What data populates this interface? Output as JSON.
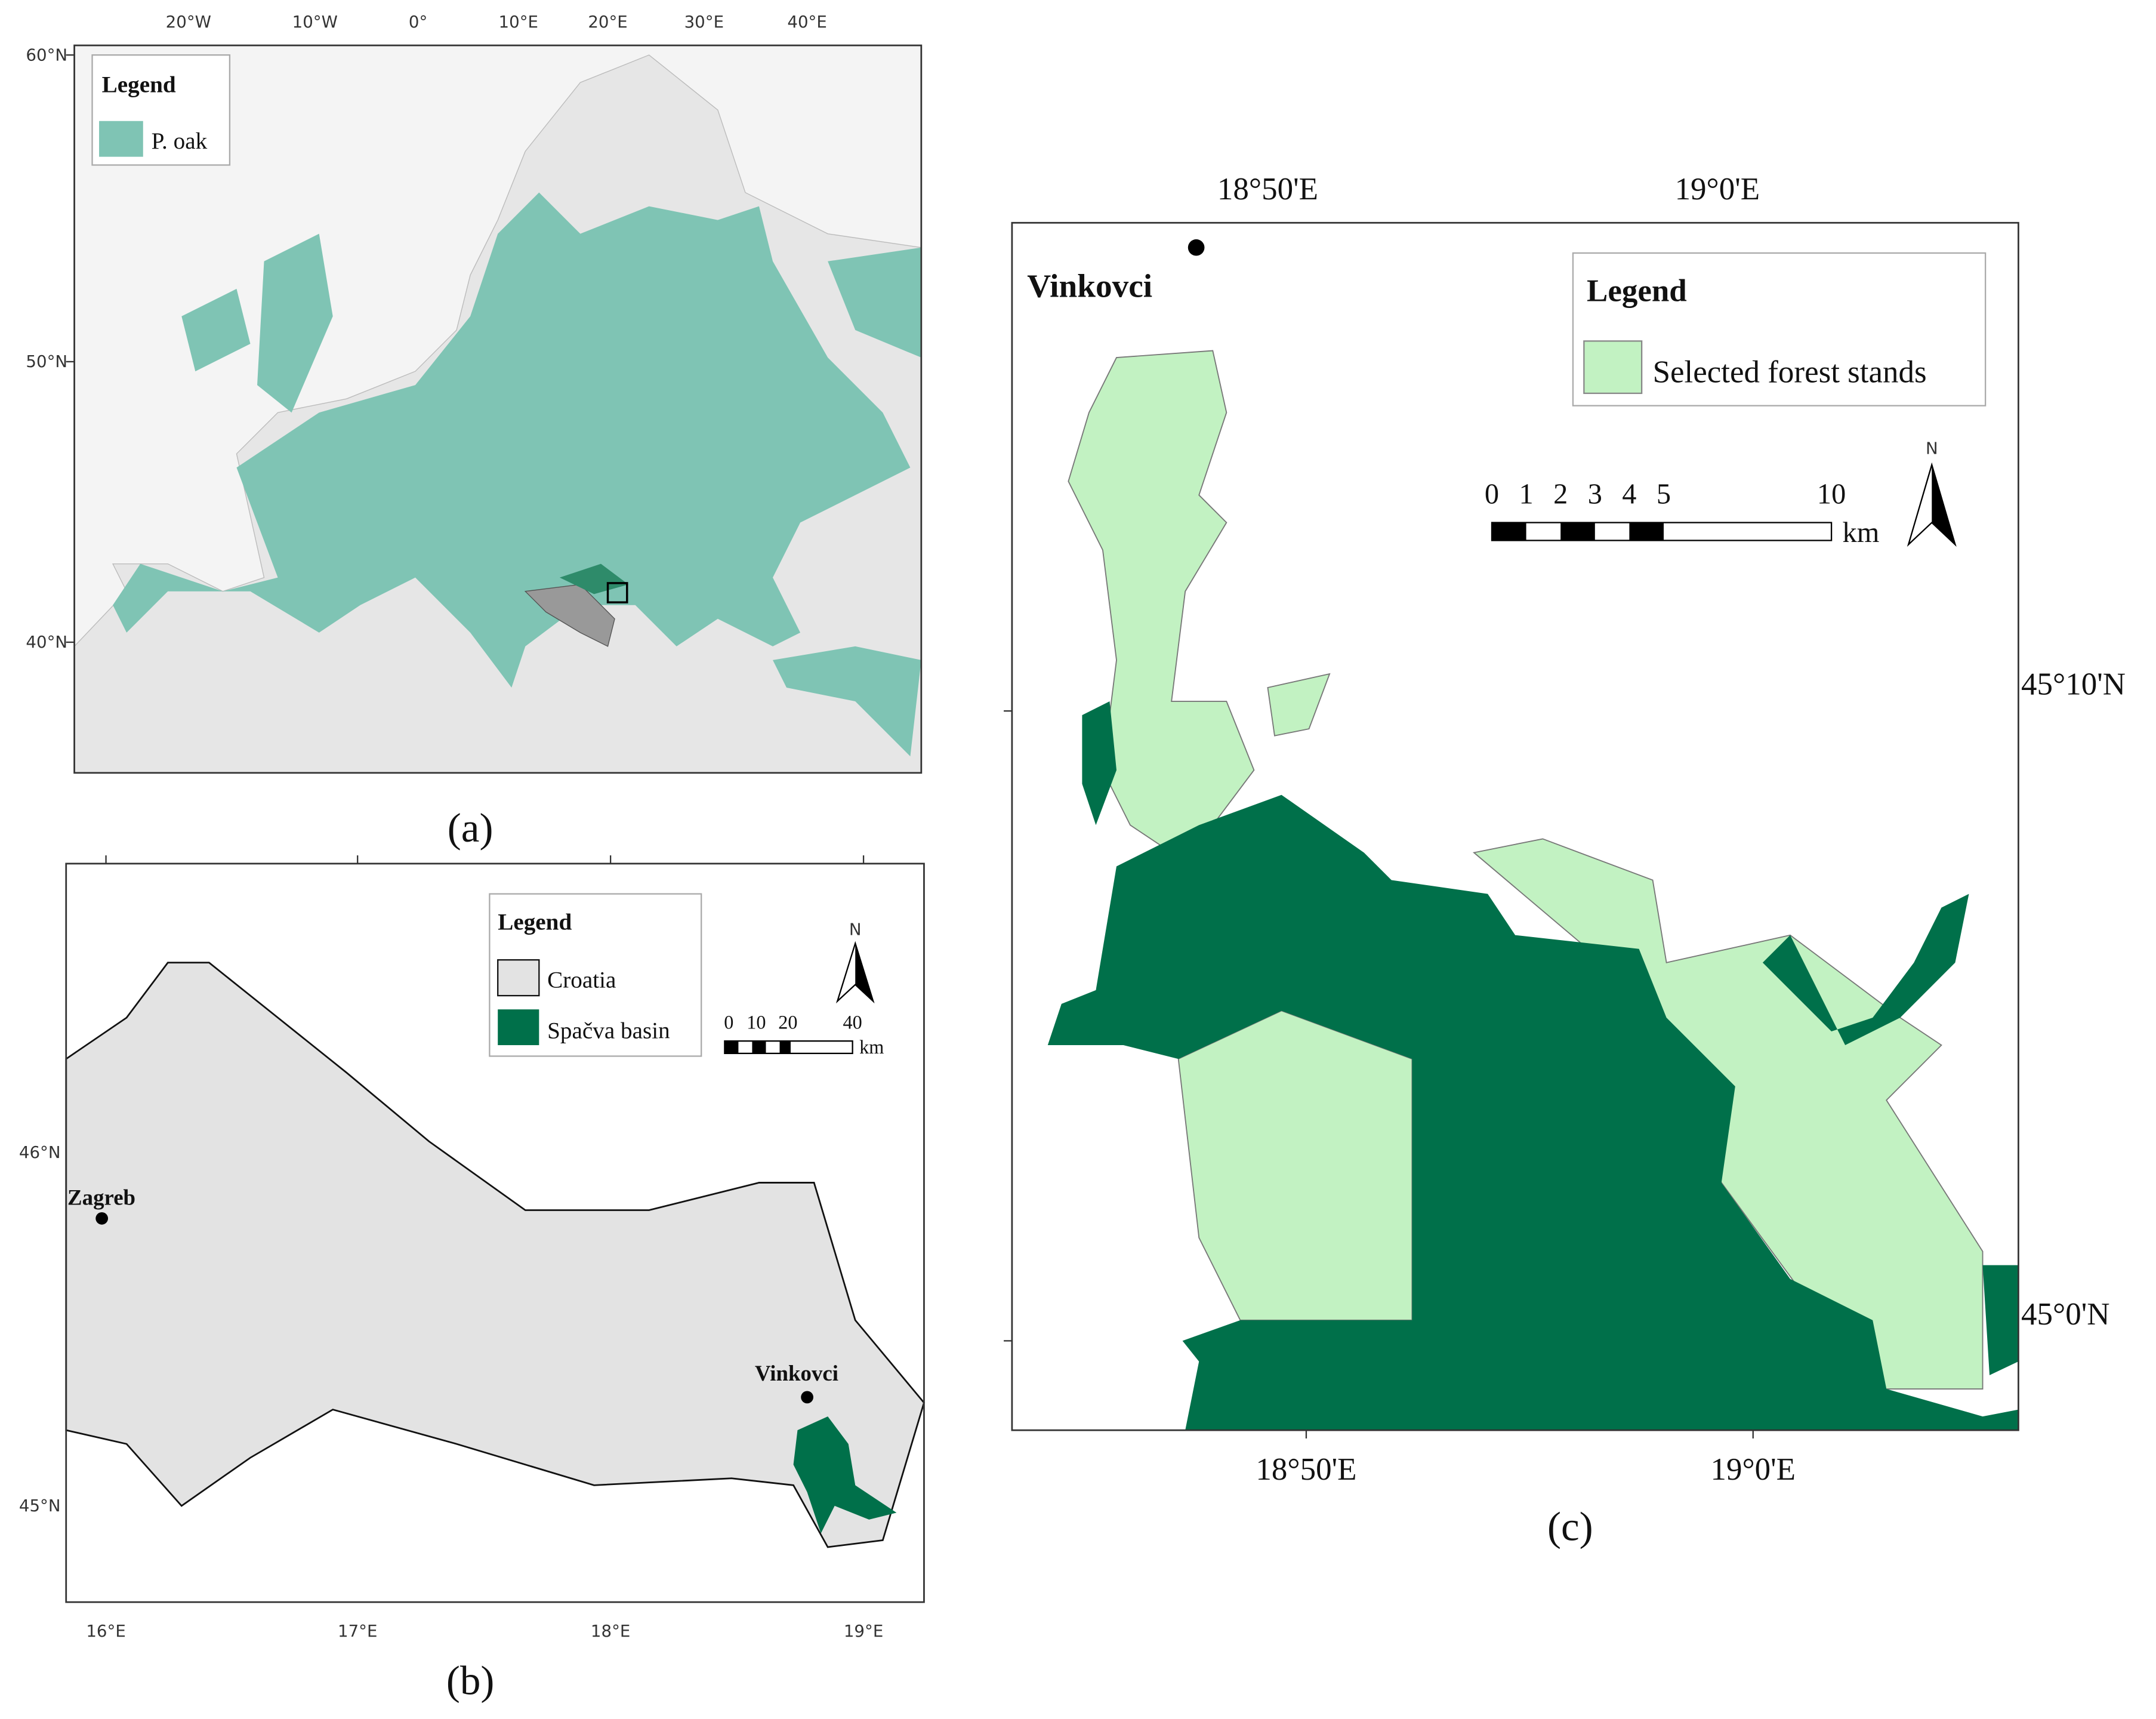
{
  "panels": {
    "a": {
      "top_labels": [
        "20°W",
        "10°W",
        "0°",
        "10°E",
        "20°E",
        "30°E",
        "40°E"
      ],
      "left_labels": [
        "60°N",
        "50°N",
        "40°N"
      ],
      "legend": {
        "title": "Legend",
        "items": [
          "P. oak"
        ]
      },
      "caption": "(a)"
    },
    "b": {
      "left_labels": [
        "46°N",
        "45°N"
      ],
      "bottom_labels": [
        "16°E",
        "17°E",
        "18°E",
        "19°E"
      ],
      "legend": {
        "title": "Legend",
        "items": [
          "Croatia",
          "Spačva basin"
        ]
      },
      "scale": {
        "ticks": [
          "0",
          "10",
          "20",
          "40"
        ],
        "unit": "km"
      },
      "north": "N",
      "cities": [
        "Zagreb",
        "Vinkovci"
      ],
      "caption": "(b)"
    },
    "c": {
      "top_labels": [
        "18°50'E",
        "19°0'E"
      ],
      "bottom_labels": [
        "18°50'E",
        "19°0'E"
      ],
      "right_labels": [
        "45°10'N",
        "45°0'N"
      ],
      "city": "Vinkovci",
      "legend": {
        "title": "Legend",
        "items": [
          "Selected forest stands"
        ]
      },
      "scale": {
        "ticks": [
          "0",
          "1",
          "2",
          "3",
          "4",
          "5",
          "10"
        ],
        "unit": "km"
      },
      "north": "N",
      "caption": "(c)"
    }
  }
}
